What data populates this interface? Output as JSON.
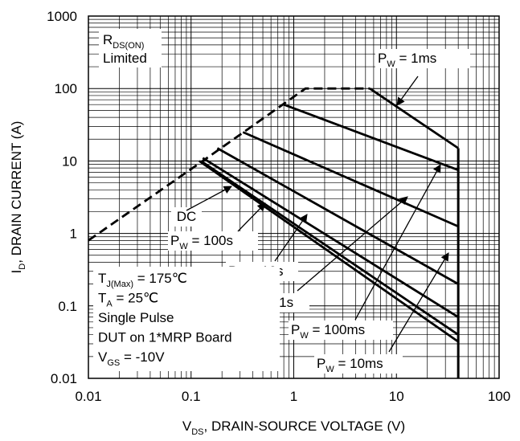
{
  "chart_data": {
    "type": "line",
    "xscale": "log",
    "yscale": "log",
    "xlim": [
      0.01,
      100
    ],
    "ylim": [
      0.01,
      1000
    ],
    "xticks": [
      "0.01",
      "0.1",
      "1",
      "10",
      "100"
    ],
    "yticks": [
      "1000",
      "100",
      "10",
      "1",
      "0.1",
      "0.01"
    ],
    "grid": true,
    "xlabel": {
      "main": "V",
      "sub": "DS",
      "rest": ", DRAIN-SOURCE VOLTAGE (V)"
    },
    "ylabel": {
      "main": "I",
      "sub": "D",
      "rest": ", DRAIN CURRENT (A)"
    },
    "rds_label": {
      "line1_main": "R",
      "line1_sub": "DS(ON)",
      "line2": "Limited"
    },
    "conditions": [
      {
        "main": "T",
        "sub": "J(Max)",
        "rest": " = 175℃"
      },
      {
        "main": "T",
        "sub": "A",
        "rest": " = 25℃"
      },
      {
        "main": "Single Pulse",
        "sub": "",
        "rest": ""
      },
      {
        "main": "DUT on 1*MRP Board",
        "sub": "",
        "rest": ""
      },
      {
        "main": "V",
        "sub": "GS",
        "rest": " = -10V"
      }
    ],
    "rds_limit": {
      "x": [
        0.01,
        0.13,
        1.3,
        5.5
      ],
      "y": [
        0.8,
        10,
        100,
        100
      ]
    },
    "series": [
      {
        "name": "P_W = 1ms",
        "label": {
          "main": "P",
          "sub": "W",
          "rest": " = 1ms"
        },
        "x": [
          5.5,
          40,
          40
        ],
        "y": [
          100,
          15,
          15
        ]
      },
      {
        "name": "P_W = 10ms",
        "label": {
          "main": "P",
          "sub": "W",
          "rest": " = 10ms"
        },
        "x": [
          0.8,
          40,
          40
        ],
        "y": [
          60,
          7.5,
          7.5
        ]
      },
      {
        "name": "P_W = 100ms",
        "label": {
          "main": "P",
          "sub": "W",
          "rest": " = 100ms"
        },
        "x": [
          0.32,
          40,
          40
        ],
        "y": [
          25,
          1.25,
          1.25
        ]
      },
      {
        "name": "P_W = 1s",
        "label": {
          "main": "P",
          "sub": "W",
          "rest": " = 1s"
        },
        "x": [
          0.18,
          40,
          40
        ],
        "y": [
          15,
          0.2,
          0.2
        ]
      },
      {
        "name": "P_W = 10s",
        "label": {
          "main": "P",
          "sub": "W",
          "rest": " = 10s"
        },
        "x": [
          0.13,
          40,
          40
        ],
        "y": [
          11,
          0.07,
          0.07
        ]
      },
      {
        "name": "P_W = 100s",
        "label": {
          "main": "P",
          "sub": "W",
          "rest": " = 100s"
        },
        "x": [
          0.125,
          40,
          40
        ],
        "y": [
          10,
          0.04,
          0.04
        ]
      },
      {
        "name": "DC",
        "label": {
          "main": "DC",
          "sub": "",
          "rest": ""
        },
        "x": [
          0.12,
          40,
          40
        ],
        "y": [
          10,
          0.032,
          0.032
        ]
      }
    ],
    "vertical_limit": {
      "x": 40,
      "y": [
        0.01,
        15
      ]
    }
  }
}
